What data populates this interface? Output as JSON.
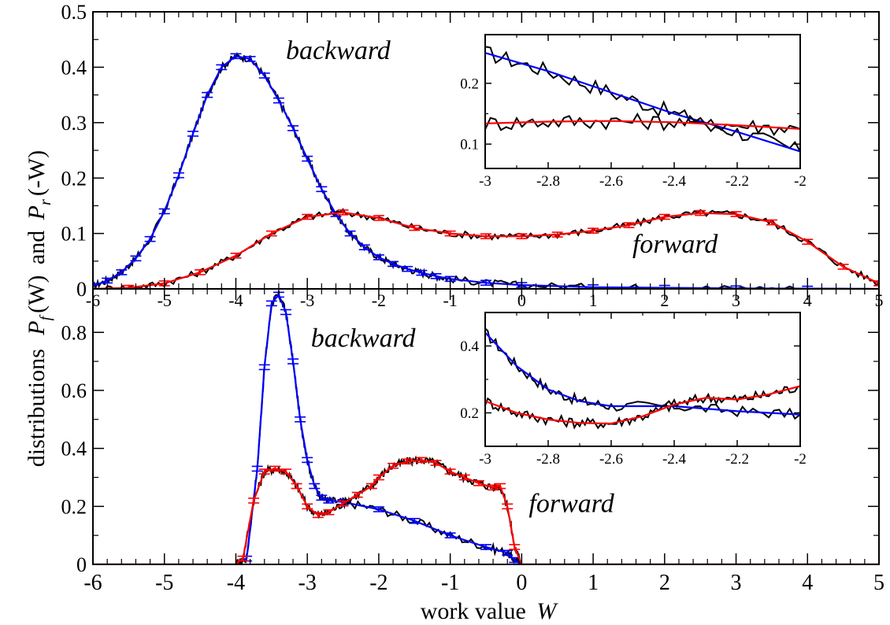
{
  "figure": {
    "ylabel_prefix": "distributions",
    "ylabel_P1": "P",
    "ylabel_f": "f",
    "ylabel_W1": "(W)",
    "ylabel_and": "and",
    "ylabel_P2": "P",
    "ylabel_r": "r",
    "ylabel_W2": "(-W)",
    "xlabel_text": "work value",
    "xlabel_var": "W"
  },
  "colors": {
    "raw": "#000000",
    "backward": "#0000ff",
    "forward": "#ff0000"
  },
  "chart_data": [
    {
      "type": "line",
      "panel": "top",
      "xlim": [
        -6,
        5
      ],
      "ylim": [
        0,
        0.5
      ],
      "x_ticks": [
        -6,
        -5,
        -4,
        -3,
        -2,
        -1,
        0,
        1,
        2,
        3,
        4,
        5
      ],
      "x_tick_labels": [
        "-6",
        "-5",
        "-4",
        "-3",
        "-2",
        "-1",
        "0",
        "1",
        "2",
        "3",
        "4",
        "5"
      ],
      "y_ticks": [
        0,
        0.1,
        0.2,
        0.3,
        0.4,
        0.5
      ],
      "y_tick_labels": [
        "0",
        "0.1",
        "0.2",
        "0.3",
        "0.4",
        "0.5"
      ],
      "grid": false,
      "annotations": [
        {
          "text": "backward",
          "x": -3.3,
          "y": 0.415
        },
        {
          "text": "forward",
          "x": 1.55,
          "y": 0.065
        }
      ],
      "series": [
        {
          "role": "backward",
          "color": "#0000ff",
          "x": [
            -6,
            -5.8,
            -5.6,
            -5.4,
            -5.2,
            -5.0,
            -4.8,
            -4.6,
            -4.4,
            -4.2,
            -4.0,
            -3.8,
            -3.6,
            -3.4,
            -3.2,
            -3.0,
            -2.8,
            -2.6,
            -2.4,
            -2.2,
            -2.0,
            -1.8,
            -1.6,
            -1.4,
            -1.2,
            -1.0,
            -0.5,
            0,
            1,
            2,
            3,
            4,
            5
          ],
          "y": [
            0.005,
            0.015,
            0.03,
            0.055,
            0.09,
            0.14,
            0.205,
            0.28,
            0.35,
            0.4,
            0.42,
            0.415,
            0.385,
            0.34,
            0.29,
            0.235,
            0.18,
            0.135,
            0.1,
            0.075,
            0.057,
            0.045,
            0.036,
            0.029,
            0.023,
            0.018,
            0.011,
            0.007,
            0.003,
            0.002,
            0.001,
            0.0005,
            0.0
          ]
        },
        {
          "role": "forward",
          "color": "#ff0000",
          "x": [
            -6,
            -5.5,
            -5.0,
            -4.5,
            -4.0,
            -3.5,
            -3.0,
            -2.5,
            -2.0,
            -1.5,
            -1.0,
            -0.5,
            0,
            0.5,
            1.0,
            1.5,
            2.0,
            2.5,
            3.0,
            3.5,
            4.0,
            4.5,
            5.0
          ],
          "y": [
            0.0,
            0.002,
            0.01,
            0.03,
            0.06,
            0.1,
            0.13,
            0.138,
            0.128,
            0.11,
            0.1,
            0.095,
            0.095,
            0.098,
            0.105,
            0.115,
            0.13,
            0.137,
            0.135,
            0.12,
            0.085,
            0.04,
            0.01
          ]
        }
      ],
      "inset": {
        "xlim": [
          -3,
          -2
        ],
        "ylim": [
          0.06,
          0.28
        ],
        "x_ticks": [
          -3,
          -2.8,
          -2.6,
          -2.4,
          -2.2,
          -2
        ],
        "x_tick_labels": [
          "-3",
          "-2.8",
          "-2.6",
          "-2.4",
          "-2.2",
          "-2"
        ],
        "y_ticks": [
          0.1,
          0.2
        ],
        "y_tick_labels": [
          "0.1",
          "0.2"
        ],
        "series": [
          {
            "role": "backward",
            "color": "#0000ff",
            "x": [
              -3.0,
              -2.8,
              -2.6,
              -2.4,
              -2.2,
              -2.0
            ],
            "y": [
              0.25,
              0.22,
              0.185,
              0.15,
              0.12,
              0.088
            ]
          },
          {
            "role": "forward",
            "color": "#ff0000",
            "x": [
              -3.0,
              -2.8,
              -2.6,
              -2.4,
              -2.2,
              -2.0
            ],
            "y": [
              0.134,
              0.137,
              0.138,
              0.136,
              0.131,
              0.125
            ]
          }
        ]
      }
    },
    {
      "type": "line",
      "panel": "bottom",
      "xlim": [
        -6,
        5
      ],
      "ylim": [
        0,
        0.95
      ],
      "x_ticks": [
        -6,
        -5,
        -4,
        -3,
        -2,
        -1,
        0,
        1,
        2,
        3,
        4,
        5
      ],
      "x_tick_labels": [
        "-6",
        "-5",
        "-4",
        "-3",
        "-2",
        "-1",
        "0",
        "1",
        "2",
        "3",
        "4",
        "5"
      ],
      "y_ticks": [
        0,
        0.2,
        0.4,
        0.6,
        0.8
      ],
      "y_tick_labels": [
        "0",
        "0.2",
        "0.4",
        "0.6",
        "0.8"
      ],
      "grid": false,
      "annotations": [
        {
          "text": "backward",
          "x": -2.95,
          "y": 0.75
        },
        {
          "text": "forward",
          "x": 0.1,
          "y": 0.18
        }
      ],
      "series": [
        {
          "role": "backward",
          "color": "#0000ff",
          "x": [
            -6,
            -4.0,
            -3.85,
            -3.7,
            -3.6,
            -3.5,
            -3.4,
            -3.3,
            -3.2,
            -3.1,
            -3.0,
            -2.9,
            -2.8,
            -2.7,
            -2.5,
            -2.0,
            -1.5,
            -1.0,
            -0.5,
            -0.2,
            -0.1,
            0.0,
            5
          ],
          "y": [
            0,
            0,
            0.02,
            0.33,
            0.68,
            0.9,
            0.93,
            0.87,
            0.7,
            0.5,
            0.36,
            0.27,
            0.23,
            0.22,
            0.215,
            0.19,
            0.15,
            0.1,
            0.06,
            0.04,
            0.015,
            0,
            0
          ]
        },
        {
          "role": "forward",
          "color": "#ff0000",
          "x": [
            -6,
            -4.0,
            -3.9,
            -3.75,
            -3.6,
            -3.45,
            -3.3,
            -3.15,
            -3.0,
            -2.85,
            -2.7,
            -2.5,
            -2.3,
            -2.1,
            -2.0,
            -1.8,
            -1.6,
            -1.4,
            -1.2,
            -1.0,
            -0.8,
            -0.6,
            -0.4,
            -0.3,
            -0.2,
            -0.1,
            0.0,
            5
          ],
          "y": [
            0,
            0,
            0.02,
            0.22,
            0.32,
            0.33,
            0.32,
            0.27,
            0.2,
            0.17,
            0.18,
            0.21,
            0.24,
            0.27,
            0.3,
            0.34,
            0.355,
            0.36,
            0.35,
            0.32,
            0.3,
            0.28,
            0.265,
            0.27,
            0.2,
            0.06,
            0,
            0
          ]
        }
      ],
      "inset": {
        "xlim": [
          -3,
          -2
        ],
        "ylim": [
          0.1,
          0.5
        ],
        "x_ticks": [
          -3,
          -2.8,
          -2.6,
          -2.4,
          -2.2,
          -2
        ],
        "x_tick_labels": [
          "-3",
          "-2.8",
          "-2.6",
          "-2.4",
          "-2.2",
          "-2"
        ],
        "y_ticks": [
          0.2,
          0.4
        ],
        "y_tick_labels": [
          "0.2",
          "0.4"
        ],
        "series": [
          {
            "role": "backward",
            "color": "#0000ff",
            "x": [
              -3.0,
              -2.9,
              -2.8,
              -2.7,
              -2.6,
              -2.4,
              -2.2,
              -2.0
            ],
            "y": [
              0.44,
              0.34,
              0.27,
              0.235,
              0.22,
              0.22,
              0.205,
              0.195
            ]
          },
          {
            "role": "forward",
            "color": "#ff0000",
            "x": [
              -3.0,
              -2.9,
              -2.8,
              -2.7,
              -2.6,
              -2.5,
              -2.4,
              -2.3,
              -2.2,
              -2.1,
              -2.0
            ],
            "y": [
              0.235,
              0.2,
              0.18,
              0.17,
              0.168,
              0.19,
              0.225,
              0.245,
              0.24,
              0.255,
              0.28
            ]
          }
        ]
      }
    }
  ]
}
